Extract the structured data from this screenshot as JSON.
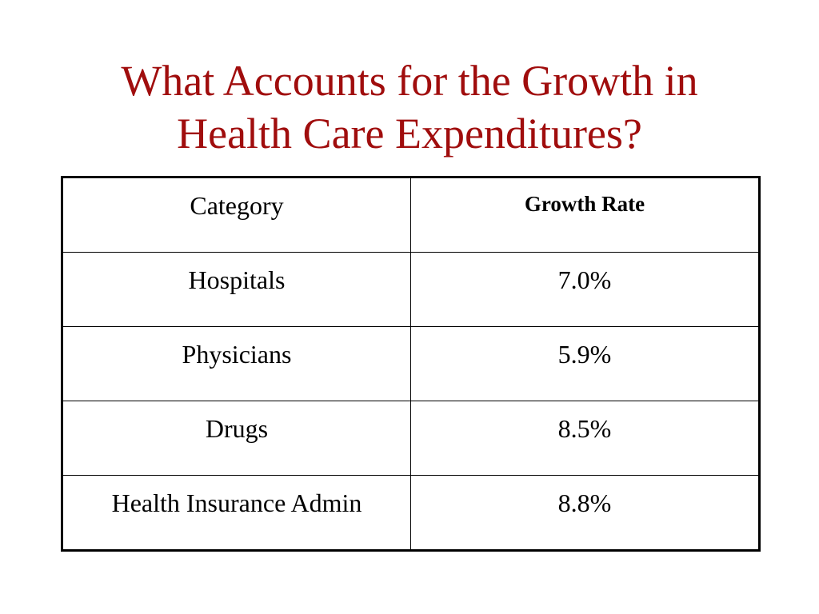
{
  "title": {
    "line1": "What Accounts for the Growth in",
    "line2": "Health Care Expenditures?"
  },
  "table": {
    "headers": {
      "category": "Category",
      "growth_rate": "Growth Rate"
    },
    "rows": [
      {
        "category": "Hospitals",
        "growth_rate": "7.0%"
      },
      {
        "category": "Physicians",
        "growth_rate": "5.9%"
      },
      {
        "category": "Drugs",
        "growth_rate": "8.5%"
      },
      {
        "category": "Health Insurance Admin",
        "growth_rate": "8.8%"
      }
    ]
  },
  "colors": {
    "title": "#a00d0d",
    "text": "#000000",
    "background": "#ffffff"
  }
}
